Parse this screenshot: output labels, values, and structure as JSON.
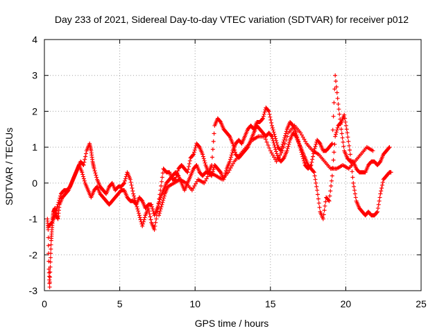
{
  "chart_data": {
    "type": "scatter",
    "title": "Day 233 of 2021, Sidereal Day-to-day VTEC variation (SDTVAR) for receiver p012",
    "xlabel": "GPS time / hours",
    "ylabel": "SDTVAR / TECUs",
    "xlim": [
      0,
      25
    ],
    "ylim": [
      -3,
      4
    ],
    "xticks": [
      0,
      5,
      10,
      15,
      20,
      25
    ],
    "yticks": [
      -3,
      -2,
      -1,
      0,
      1,
      2,
      3,
      4
    ],
    "xtick_labels": [
      "0",
      "5",
      "10",
      "15",
      "20",
      "25"
    ],
    "ytick_labels": [
      "-3",
      "-2",
      "-1",
      "0",
      "1",
      "2",
      "3",
      "4"
    ],
    "grid": true,
    "marker": "plus",
    "color": "#ff0000",
    "series": [
      {
        "name": "track-a",
        "x": [
          0.2,
          0.25,
          0.3,
          0.35,
          0.4,
          0.45,
          0.5,
          0.55,
          0.6,
          0.7,
          0.8,
          0.9,
          1.0,
          1.2,
          1.4,
          1.6,
          1.8,
          2.0,
          2.2,
          2.4,
          2.6,
          2.8,
          3.0,
          3.1,
          3.2,
          3.3,
          3.5,
          3.7,
          3.9,
          4.1,
          4.3,
          4.5,
          4.7,
          4.9,
          5.1,
          5.3,
          5.5,
          5.7,
          5.9,
          6.1,
          6.3,
          6.5,
          6.7,
          6.9,
          7.1,
          7.3,
          7.5,
          7.7,
          7.9,
          8.1,
          8.3,
          8.5,
          8.7,
          8.9,
          9.1,
          9.3,
          9.5,
          9.7,
          9.9,
          10.1,
          10.3,
          10.5,
          10.7,
          10.9,
          11.1,
          11.3,
          11.5,
          11.7,
          11.9,
          12.1,
          12.3,
          12.5,
          12.7,
          12.9,
          13.1,
          13.3,
          13.5,
          13.7,
          13.9,
          14.1,
          14.3,
          14.5,
          14.7,
          14.9,
          15.1,
          15.3,
          15.5,
          15.7,
          15.9,
          16.1,
          16.3,
          16.5,
          16.7,
          16.9,
          17.1,
          17.3,
          17.5,
          17.7,
          17.9,
          18.1,
          18.3,
          18.5,
          18.7,
          18.9,
          19.1,
          19.3,
          19.5,
          19.7,
          19.9,
          20.1,
          20.3,
          20.5,
          20.7,
          20.9,
          21.1,
          21.3,
          21.5,
          21.7,
          21.9,
          22.1,
          22.3,
          22.5,
          22.7,
          22.9,
          23.0
        ],
        "y": [
          -1.0,
          -1.3,
          -2.4,
          -2.9,
          -2.2,
          -1.6,
          -1.3,
          -1.0,
          -0.8,
          -0.7,
          -0.9,
          -1.0,
          -0.6,
          -0.4,
          -0.3,
          -0.2,
          0.0,
          0.2,
          0.4,
          0.6,
          0.5,
          0.9,
          1.1,
          0.9,
          0.6,
          0.4,
          0.1,
          -0.1,
          -0.2,
          -0.3,
          -0.1,
          0.0,
          -0.2,
          -0.1,
          -0.1,
          0.0,
          0.3,
          0.1,
          -0.3,
          -0.6,
          -0.9,
          -1.2,
          -0.9,
          -0.7,
          -1.1,
          -1.3,
          -0.8,
          -0.2,
          0.4,
          0.3,
          0.3,
          0.1,
          0.1,
          0.4,
          0.5,
          0.4,
          0.3,
          0.7,
          0.8,
          1.1,
          1.0,
          0.8,
          0.5,
          0.3,
          0.2,
          0.5,
          0.4,
          0.3,
          0.1,
          0.4,
          0.6,
          0.9,
          1.1,
          1.2,
          1.1,
          1.3,
          1.5,
          1.6,
          1.5,
          1.7,
          1.7,
          1.8,
          2.1,
          2.0,
          1.6,
          1.3,
          1.0,
          0.9,
          1.2,
          1.5,
          1.7,
          1.6,
          1.4,
          1.1,
          0.9,
          0.7,
          0.5,
          0.4,
          0.3,
          -0.2,
          -0.8,
          -1.0,
          -0.4,
          -0.5,
          0.2,
          1.3,
          1.6,
          1.7,
          1.9,
          1.4,
          0.8,
          0.0,
          -0.5,
          -0.7,
          -0.8,
          -0.9,
          -0.8,
          -0.9,
          -0.9,
          -0.8,
          -0.3,
          0.1,
          0.2,
          0.3,
          0.3
        ]
      },
      {
        "name": "track-b",
        "x": [
          0.3,
          0.5,
          0.7,
          0.9,
          1.1,
          1.3,
          1.5,
          1.7,
          1.9,
          2.1,
          2.3,
          2.5,
          2.7,
          2.9,
          3.1,
          3.3,
          3.5,
          3.7,
          3.9,
          4.1,
          4.3,
          4.5,
          4.7,
          4.9,
          5.1,
          5.3,
          5.5,
          5.7,
          5.9,
          6.1,
          6.3,
          6.5,
          6.7,
          6.9,
          7.1,
          7.3,
          7.5,
          7.7,
          7.9,
          8.1,
          8.3,
          8.5,
          8.7,
          8.9,
          9.1,
          9.3,
          9.5,
          9.7,
          9.9,
          10.1,
          10.3,
          10.5,
          10.7,
          10.9,
          11.1,
          11.3,
          11.5,
          11.7,
          11.9,
          12.1,
          12.3,
          12.5,
          12.7,
          12.9,
          13.1,
          13.3,
          13.5,
          13.7,
          13.9,
          14.1,
          14.3,
          14.5,
          14.7,
          14.9,
          15.1,
          15.3,
          15.5,
          15.7,
          15.9,
          16.1,
          16.3,
          16.5,
          16.7,
          16.9,
          17.1,
          17.3,
          17.5,
          17.7,
          17.9,
          18.1,
          18.3,
          18.5,
          18.7,
          18.9,
          19.1,
          19.3,
          19.5,
          19.7,
          19.9,
          20.1,
          20.3,
          20.5,
          20.7,
          20.9,
          21.1,
          21.3,
          21.5,
          21.7,
          21.9,
          22.1,
          22.3,
          22.5,
          22.7,
          22.9
        ],
        "y": [
          -1.2,
          -1.1,
          -0.9,
          -0.6,
          -0.3,
          -0.2,
          -0.2,
          -0.1,
          0.1,
          0.3,
          0.5,
          0.3,
          0.0,
          -0.2,
          -0.4,
          -0.2,
          -0.1,
          -0.3,
          -0.4,
          -0.5,
          -0.6,
          -0.5,
          -0.4,
          -0.3,
          -0.2,
          -0.2,
          -0.4,
          -0.5,
          -0.5,
          -0.6,
          -0.4,
          -0.5,
          -0.7,
          -0.6,
          -0.6,
          -0.9,
          -0.7,
          -0.4,
          -0.2,
          0.0,
          0.1,
          0.2,
          0.3,
          0.2,
          0.0,
          -0.2,
          0.0,
          0.2,
          0.4,
          0.5,
          0.3,
          0.2,
          0.3,
          0.3,
          0.5,
          1.6,
          1.8,
          1.7,
          1.5,
          1.4,
          1.3,
          1.1,
          0.8,
          0.7,
          0.8,
          0.9,
          1.0,
          1.2,
          1.4,
          1.6,
          1.5,
          1.4,
          1.3,
          1.4,
          1.3,
          1.0,
          0.7,
          0.6,
          0.7,
          0.9,
          1.2,
          1.4,
          1.3,
          1.1,
          0.8,
          0.5,
          0.4,
          0.5,
          0.9,
          1.2,
          1.1,
          0.9,
          0.9,
          1.0,
          1.1,
          3.0,
          2.2,
          1.5,
          0.9,
          0.7,
          0.6,
          0.6,
          0.4,
          0.3,
          0.3,
          0.3,
          0.5,
          0.6,
          0.6,
          0.5,
          0.6,
          0.8,
          0.9,
          1.0
        ]
      },
      {
        "name": "track-c",
        "x": [
          7.6,
          7.8,
          8.0,
          8.2,
          8.6,
          9.0,
          9.4,
          9.8,
          10.2,
          10.6,
          11.0,
          11.4,
          11.8,
          12.2,
          12.6,
          13.0,
          13.4,
          13.8,
          14.2,
          14.6,
          15.0,
          15.4,
          15.8,
          16.2,
          16.6,
          17.0,
          17.4,
          17.8,
          18.2,
          18.6,
          19.0,
          19.4,
          19.8,
          20.2,
          20.6,
          21.0,
          21.4,
          21.8
        ],
        "y": [
          -0.9,
          -0.6,
          -0.3,
          -0.1,
          0.0,
          0.1,
          0.0,
          -0.2,
          0.1,
          0.0,
          0.3,
          0.2,
          0.1,
          0.3,
          0.6,
          0.8,
          1.0,
          1.2,
          1.3,
          1.3,
          0.9,
          0.6,
          0.9,
          1.4,
          1.6,
          1.4,
          1.1,
          0.9,
          0.8,
          0.6,
          0.4,
          0.4,
          0.5,
          0.4,
          0.6,
          0.8,
          1.0,
          0.9
        ]
      }
    ]
  }
}
